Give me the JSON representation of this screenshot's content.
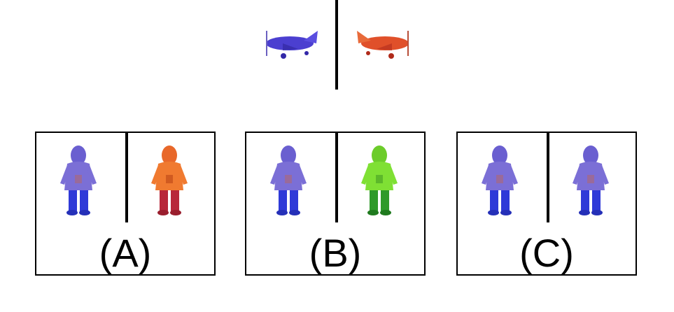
{
  "reference": {
    "left_plane_color": "#4b3fd0",
    "right_plane_color": "#e0502a"
  },
  "options": [
    {
      "label": "(A)",
      "left_color": "#7b6fd6",
      "right_color": "#f07a30",
      "right_pants": "#b8283a"
    },
    {
      "label": "(B)",
      "left_color": "#7b6fd6",
      "right_color": "#7fe034",
      "right_pants": "#2f9a2a"
    },
    {
      "label": "(C)",
      "left_color": "#7b6fd6",
      "right_color": "#7b6fd6",
      "right_pants": "#2f3ad8"
    }
  ]
}
